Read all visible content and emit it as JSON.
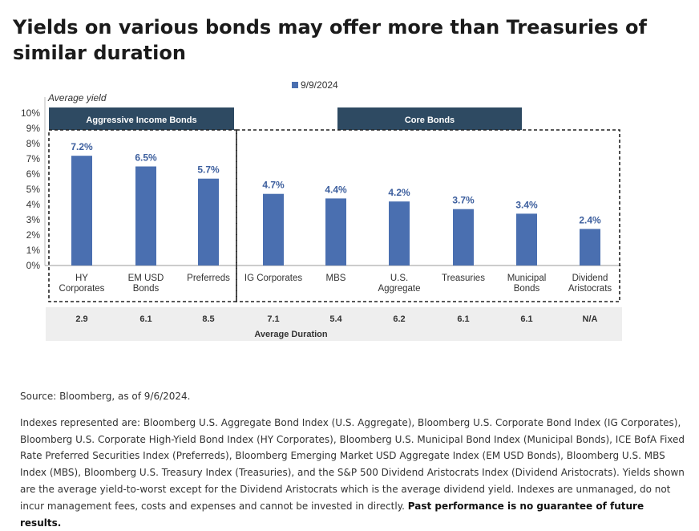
{
  "title": "Yields on various bonds may offer more than Treasuries of similar duration",
  "chart_data": {
    "type": "bar",
    "ylabel": "Average yield",
    "legend": {
      "label": "9/9/2024",
      "color": "#4a6fb0",
      "position": "top-center"
    },
    "ylim": [
      0,
      10
    ],
    "yticks": [
      "0%",
      "1%",
      "2%",
      "3%",
      "4%",
      "5%",
      "6%",
      "7%",
      "8%",
      "9%",
      "10%"
    ],
    "categories": [
      [
        "HY",
        "Corporates"
      ],
      [
        "EM USD",
        "Bonds"
      ],
      [
        "Preferreds"
      ],
      [
        "IG Corporates"
      ],
      [
        "MBS"
      ],
      [
        "U.S.",
        "Aggregate"
      ],
      [
        "Treasuries"
      ],
      [
        "Municipal",
        "Bonds"
      ],
      [
        "Dividend",
        "Aristocrats"
      ]
    ],
    "values": [
      7.2,
      6.5,
      5.7,
      4.7,
      4.4,
      4.2,
      3.7,
      3.4,
      2.4
    ],
    "value_labels": [
      "7.2%",
      "6.5%",
      "5.7%",
      "4.7%",
      "4.4%",
      "4.2%",
      "3.7%",
      "3.4%",
      "2.4%"
    ],
    "groups": [
      {
        "label": "Aggressive Income Bonds",
        "start": 0,
        "end": 2
      },
      {
        "label": "Core Bonds",
        "start": 3,
        "end": 8
      }
    ],
    "duration_row": {
      "label": "Average Duration",
      "values": [
        "2.9",
        "6.1",
        "8.5",
        "7.1",
        "5.4",
        "6.2",
        "6.1",
        "6.1",
        "N/A"
      ]
    },
    "bar_color": "#4a6fb0",
    "group_header_color": "#2e4a62",
    "grid": false
  },
  "notes": {
    "source": "Source: Bloomberg, as of 9/6/2024.",
    "indexes": "Indexes represented are: Bloomberg U.S. Aggregate Bond Index (U.S. Aggregate), Bloomberg U.S. Corporate Bond Index (IG Corporates), Bloomberg U.S. Corporate  High-Yield Bond Index (HY Corporates), Bloomberg U.S. Municipal Bond Index (Municipal Bonds), ICE BofA Fixed Rate Preferred Securities Index (Preferreds), Bloomberg Emerging  Market USD Aggregate Index (EM USD Bonds), Bloomberg U.S. MBS Index (MBS), Bloomberg U.S. Treasury Index (Treasuries), and the S&P 500 Dividend Aristocrats Index (Dividend Aristocrats). Yields shown are the average yield-to-worst except for the Dividend Aristocrats which is the average dividend yield. Indexes are unmanaged, do not incur management fees, costs and expenses and cannot be invested in directly.",
    "disclaimer": "Past performance is no guarantee of future results."
  }
}
